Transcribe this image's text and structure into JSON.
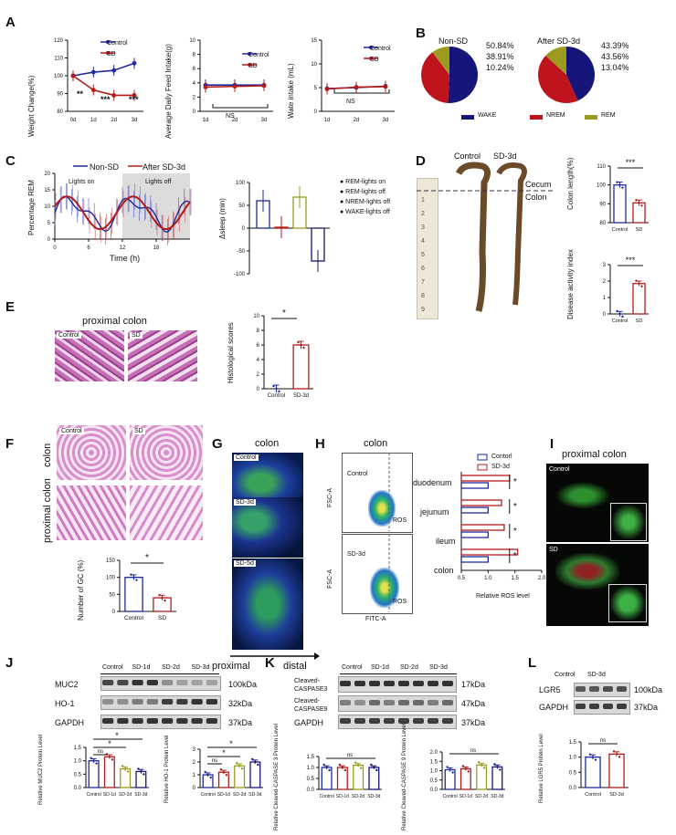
{
  "panels": {
    "A": {
      "letter": "A",
      "weight": {
        "ylabel": "Weight Change(%)",
        "yticks": [
          "80",
          "90",
          "100",
          "110",
          "120"
        ],
        "xticks": [
          "0d",
          "1d",
          "2d",
          "3d"
        ],
        "legend": [
          "Control",
          "SD"
        ],
        "sig": [
          "**",
          "***",
          "***"
        ]
      },
      "feed": {
        "ylabel": "Average Daily Feed Intake(g)",
        "yticks": [
          "0",
          "2",
          "4",
          "6",
          "8",
          "10"
        ],
        "xticks": [
          "1d",
          "2d",
          "3d"
        ],
        "legend": [
          "Control",
          "SD"
        ],
        "ns": "NS"
      },
      "water": {
        "ylabel": "Wate intake (mL)",
        "yticks": [
          "0",
          "5",
          "10",
          "15"
        ],
        "xticks": [
          "1d",
          "2d",
          "3d"
        ],
        "legend": [
          "Control",
          "SD"
        ],
        "ns": "NS"
      }
    },
    "B": {
      "letter": "B",
      "pie1": {
        "title": "Non-SD",
        "labels": [
          "50.84%",
          "38.91%",
          "10.24%"
        ]
      },
      "pie2": {
        "title": "After SD-3d",
        "labels": [
          "43.39%",
          "43.56%",
          "13.04%"
        ]
      },
      "legend": [
        "WAKE",
        "NREM",
        "REM"
      ]
    },
    "C": {
      "letter": "C",
      "legend": [
        "Non-SD",
        "After SD-3d"
      ],
      "lights_on": "Lights on",
      "lights_off": "Lights off",
      "ylabel": "Percentage REM",
      "xlabel": "Time (h)",
      "yticks": [
        "0",
        "5",
        "10",
        "15",
        "20"
      ],
      "xticks": [
        "0",
        "6",
        "12",
        "18"
      ],
      "bar_ylabel": "Δsleep (min)",
      "bar_yticks": [
        "100",
        "50",
        "0",
        "-50",
        "-100"
      ],
      "bar_legend": [
        "REM-lights on",
        "REM-lights off",
        "NREM-lights off",
        "WAKE-lights off"
      ]
    },
    "D": {
      "letter": "D",
      "control": "Control",
      "sd": "SD-3d",
      "cecum": "Cecum",
      "colon": "Colon",
      "ruler": [
        "1",
        "2",
        "3",
        "4",
        "5",
        "6",
        "7",
        "8",
        "9"
      ],
      "length_ylabel": "Colon length(%)",
      "length_yticks": [
        "80",
        "90",
        "100",
        "110"
      ],
      "dai_ylabel": "Disease activity index",
      "dai_yticks": [
        "0",
        "1",
        "2",
        "3"
      ],
      "xticks": [
        "Control",
        "SD"
      ],
      "sig": "***"
    },
    "E": {
      "letter": "E",
      "title": "proximal colon",
      "img_labels": [
        "Control",
        "SD"
      ],
      "ylabel": "Histological scores",
      "yticks": [
        "0",
        "2",
        "4",
        "6",
        "8",
        "10"
      ],
      "xticks": [
        "Control",
        "SD-3d"
      ],
      "sig": "*"
    },
    "F": {
      "letter": "F",
      "img_labels": [
        "Control",
        "SD"
      ],
      "row1": "colon",
      "row2": "proximal colon",
      "ylabel": "Number of GC (%)",
      "yticks": [
        "0",
        "50",
        "100",
        "150"
      ],
      "xticks": [
        "Control",
        "SD"
      ],
      "sig": "*"
    },
    "G": {
      "letter": "G",
      "title": "colon",
      "img_labels": [
        "Control",
        "SD-3d",
        "SD-5d"
      ],
      "proximal": "proximal",
      "distal": "distal"
    },
    "H": {
      "letter": "H",
      "title": "colon",
      "flow_labels": [
        "Control",
        "SD-3d"
      ],
      "fsc": "FSC-A",
      "fitc": "FITC-A",
      "ros": "ROS",
      "legend": [
        "Contorl",
        "SD-3d"
      ],
      "categories": [
        "duodenum",
        "jejunum",
        "ileum",
        "colon"
      ],
      "xticks": [
        "0.5",
        "1.0",
        "1.5",
        "2.0"
      ],
      "xlabel": "Relative ROS level",
      "sig": "*"
    },
    "I": {
      "letter": "I",
      "title": "proximal colon",
      "img_labels": [
        "Control",
        "SD"
      ]
    },
    "J": {
      "letter": "J",
      "groups": [
        "Control",
        "SD-1d",
        "SD-2d",
        "SD-3d"
      ],
      "proteins": [
        "MUC2",
        "HO-1",
        "GAPDH"
      ],
      "kda": [
        "100kDa",
        "32kDa",
        "37kDa"
      ],
      "ylabel1": "Relative MUC2 Protein Level",
      "ylabel2": "Relative HO-1 Protein Level",
      "yticks1": [
        "0.0",
        "0.5",
        "1.0",
        "1.5"
      ],
      "yticks2": [
        "0",
        "1",
        "2",
        "3"
      ],
      "ns": "ns",
      "sig": "*"
    },
    "K": {
      "letter": "K",
      "groups": [
        "Control",
        "SD-1d",
        "SD-2d",
        "SD-3d"
      ],
      "proteins": [
        "Cleaved-CASPASE3",
        "Cleaved-CASPASE9",
        "GAPDH"
      ],
      "kda": [
        "17kDa",
        "47kDa",
        "37kDa"
      ],
      "ylabel1": "Relative Cleaved-CASPASE 3 Protein Level",
      "ylabel2": "Relative Cleaved-CASPASE 9 Protein Level",
      "yticks1": [
        "0.0",
        "0.5",
        "1.0",
        "1.5"
      ],
      "yticks2": [
        "0.0",
        "0.5",
        "1.0",
        "1.5",
        "2.0"
      ],
      "ns": "ns"
    },
    "L": {
      "letter": "L",
      "groups": [
        "Control",
        "SD-3d"
      ],
      "proteins": [
        "LGR5",
        "GAPDH"
      ],
      "kda": [
        "100kDa",
        "37kDa"
      ],
      "ylabel": "Relative LGR5 Protein Level",
      "yticks": [
        "0.0",
        "0.5",
        "1.0",
        "1.5"
      ],
      "xticks": [
        "Control",
        "SD-3d"
      ],
      "ns": "ns"
    }
  },
  "colors": {
    "control": "#1f2a9c",
    "sd": "#b31b1b",
    "olive": "#9b9b1e",
    "navy": "#15157a"
  },
  "chart_data": [
    {
      "type": "line",
      "panel": "A1",
      "x": [
        "0d",
        "1d",
        "2d",
        "3d"
      ],
      "ylim": [
        80,
        120
      ],
      "series": [
        {
          "name": "Control",
          "values": [
            100,
            102,
            103,
            107
          ]
        },
        {
          "name": "SD",
          "values": [
            100,
            92,
            89,
            89
          ]
        }
      ]
    },
    {
      "type": "line",
      "panel": "A2",
      "x": [
        "1d",
        "2d",
        "3d"
      ],
      "ylim": [
        0,
        10
      ],
      "series": [
        {
          "name": "Control",
          "values": [
            3.7,
            3.7,
            3.7
          ]
        },
        {
          "name": "SD",
          "values": [
            3.4,
            3.5,
            3.6
          ]
        }
      ]
    },
    {
      "type": "line",
      "panel": "A3",
      "x": [
        "1d",
        "2d",
        "3d"
      ],
      "ylim": [
        0,
        15
      ],
      "series": [
        {
          "name": "Control",
          "values": [
            4.8,
            5.0,
            5.3
          ]
        },
        {
          "name": "SD",
          "values": [
            4.7,
            5.1,
            5.2
          ]
        }
      ]
    },
    {
      "type": "pie",
      "panel": "B1",
      "categories": [
        "WAKE",
        "NREM",
        "REM"
      ],
      "values": [
        50.84,
        38.91,
        10.24
      ]
    },
    {
      "type": "pie",
      "panel": "B2",
      "categories": [
        "WAKE",
        "NREM",
        "REM"
      ],
      "values": [
        43.39,
        43.56,
        13.04
      ]
    },
    {
      "type": "bar",
      "panel": "C2",
      "categories": [
        "REM-lights on",
        "REM-lights off",
        "NREM-lights off",
        "WAKE-lights off"
      ],
      "values": [
        60,
        2,
        68,
        -72
      ],
      "ylim": [
        -100,
        100
      ]
    },
    {
      "type": "bar",
      "panel": "D1",
      "categories": [
        "Control",
        "SD"
      ],
      "values": [
        100,
        90.5
      ],
      "ylim": [
        80,
        110
      ]
    },
    {
      "type": "bar",
      "panel": "D2",
      "categories": [
        "Control",
        "SD"
      ],
      "values": [
        0,
        1.85
      ],
      "ylim": [
        0,
        3
      ]
    },
    {
      "type": "bar",
      "panel": "E",
      "categories": [
        "Control",
        "SD-3d"
      ],
      "values": [
        0,
        6
      ],
      "ylim": [
        0,
        10
      ]
    },
    {
      "type": "bar",
      "panel": "F",
      "categories": [
        "Control",
        "SD"
      ],
      "values": [
        100,
        40
      ],
      "ylim": [
        0,
        150
      ]
    },
    {
      "type": "bar",
      "panel": "H",
      "categories": [
        "duodenum",
        "jejunum",
        "ileum",
        "colon"
      ],
      "series": [
        {
          "name": "Contorl",
          "values": [
            1.0,
            1.0,
            1.0,
            1.0
          ]
        },
        {
          "name": "SD-3d",
          "values": [
            1.4,
            1.25,
            1.3,
            1.55
          ]
        }
      ],
      "xlim": [
        0.5,
        2.0
      ]
    },
    {
      "type": "bar",
      "panel": "J1",
      "categories": [
        "Control",
        "SD-1d",
        "SD-2d",
        "SD-3d"
      ],
      "values": [
        1.0,
        1.15,
        0.7,
        0.6
      ],
      "ylim": [
        0,
        1.5
      ]
    },
    {
      "type": "bar",
      "panel": "J2",
      "categories": [
        "Control",
        "SD-1d",
        "SD-2d",
        "SD-3d"
      ],
      "values": [
        1.0,
        1.2,
        1.7,
        2.0
      ],
      "ylim": [
        0,
        3
      ]
    },
    {
      "type": "bar",
      "panel": "K1",
      "categories": [
        "Control",
        "SD-1d",
        "SD-2d",
        "SD-3d"
      ],
      "values": [
        1.0,
        1.0,
        1.1,
        1.0
      ],
      "ylim": [
        0,
        1.5
      ]
    },
    {
      "type": "bar",
      "panel": "K2",
      "categories": [
        "Control",
        "SD-1d",
        "SD-2d",
        "SD-3d"
      ],
      "values": [
        1.05,
        1.1,
        1.3,
        1.2
      ],
      "ylim": [
        0,
        2
      ]
    },
    {
      "type": "bar",
      "panel": "L",
      "categories": [
        "Control",
        "SD-3d"
      ],
      "values": [
        1.0,
        1.1
      ],
      "ylim": [
        0,
        1.5
      ]
    }
  ]
}
